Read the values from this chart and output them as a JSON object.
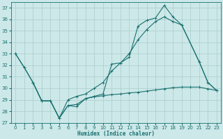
{
  "xlabel": "Humidex (Indice chaleur)",
  "background_color": "#cce8e8",
  "grid_color": "#aacccc",
  "line_color": "#1a7070",
  "ylim": [
    27,
    37.5
  ],
  "xlim": [
    -0.5,
    23.5
  ],
  "yticks": [
    27,
    28,
    29,
    30,
    31,
    32,
    33,
    34,
    35,
    36,
    37
  ],
  "xticks": [
    0,
    1,
    2,
    3,
    4,
    5,
    6,
    7,
    8,
    9,
    10,
    11,
    12,
    13,
    14,
    15,
    16,
    17,
    18,
    19,
    20,
    21,
    22,
    23
  ],
  "line1_x": [
    0,
    1,
    2,
    3,
    4,
    5,
    6,
    7,
    8,
    9,
    10,
    11,
    12,
    13,
    14,
    15,
    16,
    17,
    18,
    19,
    21,
    22,
    23
  ],
  "line1_y": [
    33.0,
    31.8,
    30.5,
    28.9,
    28.9,
    27.4,
    28.5,
    28.4,
    29.1,
    29.3,
    29.5,
    32.1,
    32.2,
    32.7,
    35.4,
    35.9,
    36.1,
    37.2,
    36.2,
    35.5,
    32.3,
    30.5,
    29.8
  ],
  "line2_x": [
    0,
    1,
    2,
    3,
    4,
    5,
    6,
    7,
    8,
    9,
    10,
    11,
    12,
    13,
    14,
    15,
    16,
    17,
    18,
    19,
    21,
    22,
    23
  ],
  "line2_y": [
    33.0,
    31.8,
    30.5,
    28.9,
    28.9,
    27.4,
    29.0,
    29.3,
    29.5,
    30.0,
    30.5,
    31.5,
    32.2,
    33.0,
    34.2,
    35.1,
    35.8,
    36.2,
    35.8,
    35.5,
    32.3,
    30.5,
    29.8
  ],
  "line3_x": [
    2,
    3,
    4,
    5,
    6,
    7,
    8,
    9,
    10,
    11,
    12,
    13,
    14,
    15,
    16,
    17,
    18,
    19,
    20,
    21,
    22,
    23
  ],
  "line3_y": [
    30.5,
    28.9,
    28.9,
    27.4,
    28.5,
    28.6,
    29.1,
    29.25,
    29.35,
    29.45,
    29.5,
    29.6,
    29.65,
    29.75,
    29.85,
    29.95,
    30.05,
    30.1,
    30.1,
    30.1,
    29.95,
    29.8
  ],
  "tick_fontsize": 5,
  "xlabel_fontsize": 5.5
}
